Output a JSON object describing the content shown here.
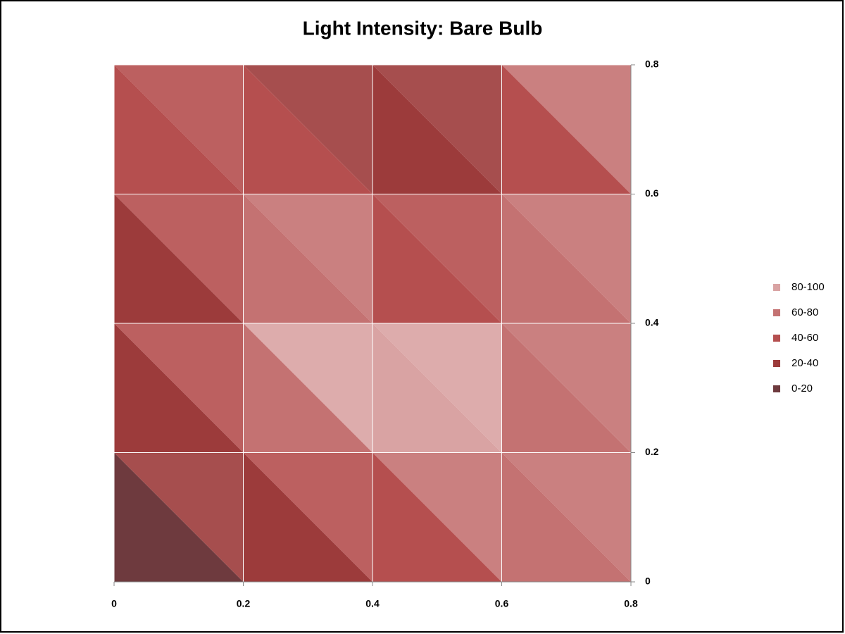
{
  "chart_data": {
    "type": "contour",
    "title": "Light Intensity: Bare Bulb",
    "x": [
      0,
      0.2,
      0.4,
      0.6,
      0.8
    ],
    "y": [
      0,
      0.2,
      0.4,
      0.6,
      0.8
    ],
    "z": [
      [
        5,
        10,
        20,
        50,
        45
      ],
      [
        10,
        50,
        90,
        90,
        70
      ],
      [
        10,
        70,
        90,
        60,
        85
      ],
      [
        35,
        70,
        25,
        45,
        75
      ],
      [
        30,
        30,
        10,
        50,
        55
      ]
    ],
    "levels": [
      0,
      20,
      40,
      60,
      80,
      100
    ],
    "series": [
      {
        "name": "80-100",
        "color": "#d9a3a3"
      },
      {
        "name": "60-80",
        "color": "#c47272"
      },
      {
        "name": "40-60",
        "color": "#b54f4f"
      },
      {
        "name": "20-40",
        "color": "#9c3b3b"
      },
      {
        "name": "0-20",
        "color": "#6e3a3e"
      }
    ],
    "xlim": [
      0,
      0.8
    ],
    "ylim": [
      0,
      0.8
    ],
    "xticks": [
      0,
      0.2,
      0.4,
      0.6,
      0.8
    ],
    "yticks": [
      0,
      0.2,
      0.4,
      0.6,
      0.8
    ],
    "grid": true,
    "legend": "right"
  }
}
